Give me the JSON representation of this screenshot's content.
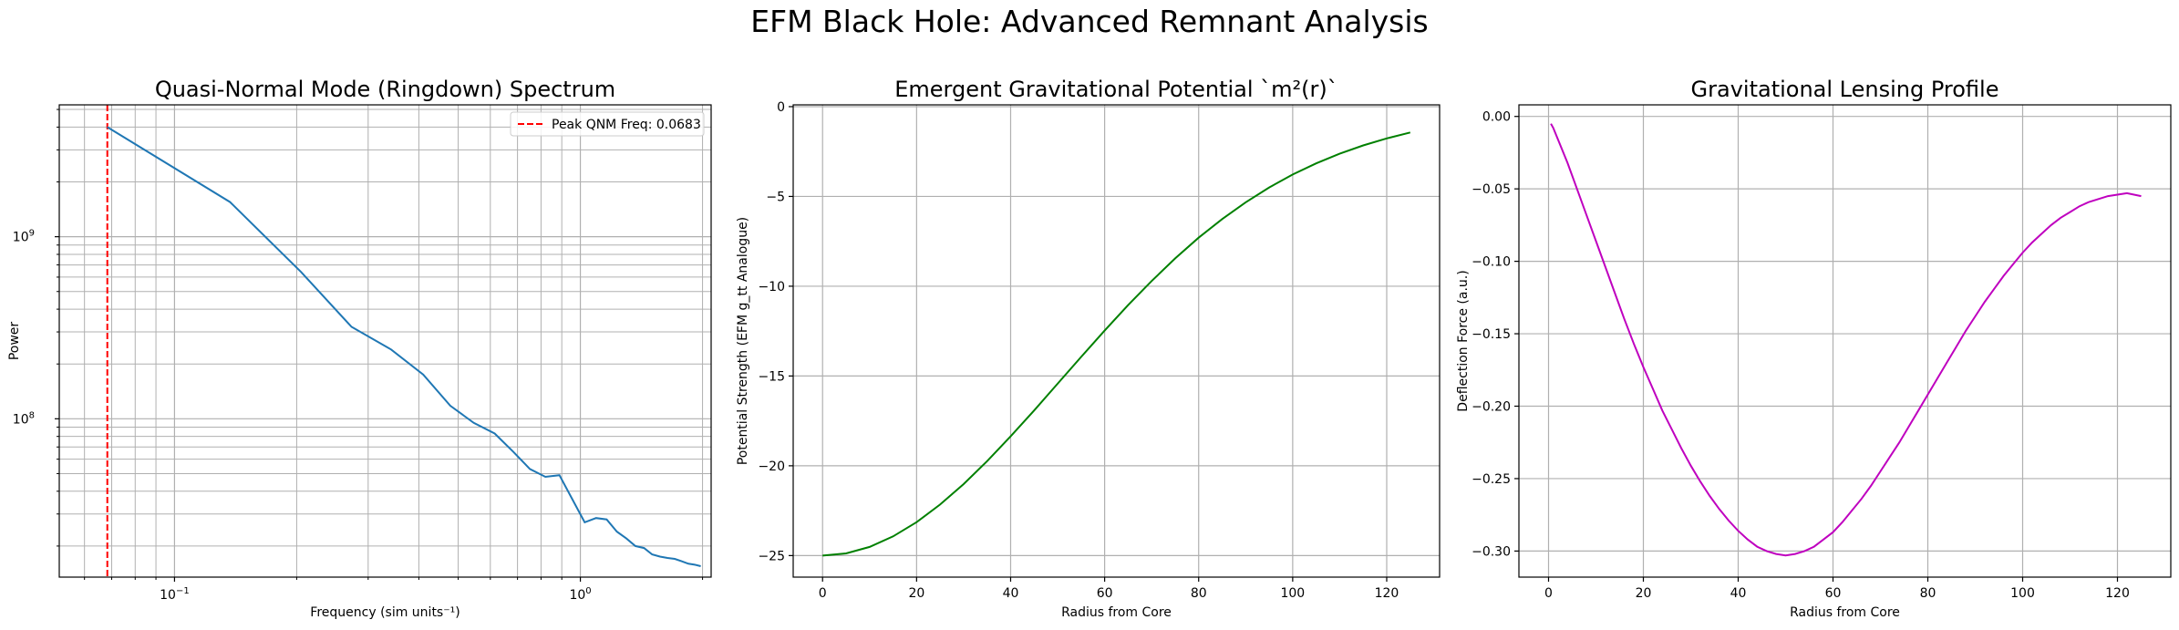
{
  "figure": {
    "title": "EFM Black Hole: Advanced Remnant Analysis"
  },
  "chart_data": [
    {
      "type": "line",
      "title": "Quasi-Normal Mode (Ringdown) Spectrum",
      "xlabel": "Frequency (sim units⁻¹)",
      "ylabel": "Power",
      "xscale": "log",
      "yscale": "log",
      "xlim": [
        0.052,
        2.1
      ],
      "ylim": [
        13500000,
        5300000000
      ],
      "grid": "both-major-minor",
      "xticks": [
        {
          "value": 0.1,
          "base": "10",
          "exp": "−1"
        },
        {
          "value": 1,
          "base": "10",
          "exp": "0"
        }
      ],
      "yticks": [
        {
          "value": 100000000,
          "base": "10",
          "exp": "8"
        },
        {
          "value": 1000000000,
          "base": "10",
          "exp": "9"
        }
      ],
      "legend": {
        "position": "top-right",
        "entries": [
          {
            "label": "Peak QNM Freq: 0.0683",
            "style": "dashed",
            "color": "#ff0000"
          }
        ]
      },
      "vline": {
        "x": 0.0683,
        "color": "#ff0000",
        "style": "dashed"
      },
      "series": [
        {
          "color": "#1f77b4",
          "x": [
            0.0683,
            0.137,
            0.205,
            0.273,
            0.342,
            0.41,
            0.478,
            0.546,
            0.615,
            0.683,
            0.751,
            0.82,
            0.888,
            0.956,
            1.025,
            1.093,
            1.161,
            1.23,
            1.298,
            1.366,
            1.435,
            1.503,
            1.571,
            1.64,
            1.708,
            1.776,
            1.845,
            1.913,
            1.98
          ],
          "values": [
            4000000000,
            1550000000,
            640000000,
            320000000,
            240000000,
            175000000,
            118000000,
            95000000,
            83000000,
            66000000,
            53000000,
            48000000,
            49000000,
            36000000,
            27000000,
            28500000,
            28000000,
            24000000,
            22000000,
            20000000,
            19500000,
            18000000,
            17500000,
            17200000,
            17000000,
            16500000,
            16000000,
            15800000,
            15500000
          ]
        }
      ]
    },
    {
      "type": "line",
      "title": "Emergent Gravitational Potential `m²(r)`",
      "xlabel": "Radius from Core",
      "ylabel": "Potential Strength (EFM g_tt Analogue)",
      "xlim": [
        -6.25,
        131.25
      ],
      "ylim": [
        -26.2,
        0.1
      ],
      "grid": "major",
      "xticks": [
        0,
        20,
        40,
        60,
        80,
        100,
        120
      ],
      "yticks": [
        0,
        -5,
        -10,
        -15,
        -20,
        -25
      ],
      "ytick_labels": [
        "0",
        "−5",
        "−10",
        "−15",
        "−20",
        "−25"
      ],
      "series": [
        {
          "color": "#008000",
          "x": [
            0,
            5,
            10,
            15,
            20,
            25,
            30,
            35,
            40,
            45,
            50,
            55,
            60,
            65,
            70,
            75,
            80,
            85,
            90,
            95,
            100,
            105,
            110,
            115,
            120,
            125
          ],
          "values": [
            -25.0,
            -24.88,
            -24.52,
            -23.93,
            -23.14,
            -22.16,
            -21.02,
            -19.74,
            -18.36,
            -16.92,
            -15.43,
            -13.94,
            -12.47,
            -11.05,
            -9.71,
            -8.45,
            -7.3,
            -6.26,
            -5.33,
            -4.5,
            -3.78,
            -3.16,
            -2.62,
            -2.16,
            -1.77,
            -1.44
          ]
        }
      ]
    },
    {
      "type": "line",
      "title": "Gravitational Lensing Profile",
      "xlabel": "Radius from Core",
      "ylabel": "Deflection Force (a.u.)",
      "xlim": [
        -6.25,
        131.25
      ],
      "ylim": [
        -0.318,
        0.008
      ],
      "grid": "major",
      "xticks": [
        0,
        20,
        40,
        60,
        80,
        100,
        120
      ],
      "yticks": [
        0.0,
        -0.05,
        -0.1,
        -0.15,
        -0.2,
        -0.25,
        -0.3
      ],
      "ytick_labels": [
        "0.00",
        "−0.05",
        "−0.10",
        "−0.15",
        "−0.20",
        "−0.25",
        "−0.30"
      ],
      "series": [
        {
          "color": "#bf00bf",
          "x": [
            0.5,
            1,
            2,
            4,
            6,
            8,
            10,
            12,
            14,
            16,
            18,
            20,
            22,
            24,
            26,
            28,
            30,
            32,
            34,
            36,
            38,
            40,
            42,
            44,
            46,
            48,
            50,
            52,
            54,
            56,
            58,
            60,
            62,
            64,
            66,
            68,
            70,
            72,
            74,
            76,
            78,
            80,
            82,
            84,
            86,
            88,
            90,
            92,
            94,
            96,
            98,
            100,
            102,
            104,
            106,
            108,
            110,
            112,
            114,
            116,
            118,
            120,
            122,
            125
          ],
          "values": [
            -0.005,
            -0.008,
            -0.016,
            -0.032,
            -0.05,
            -0.068,
            -0.086,
            -0.104,
            -0.122,
            -0.14,
            -0.157,
            -0.173,
            -0.188,
            -0.203,
            -0.216,
            -0.229,
            -0.241,
            -0.252,
            -0.262,
            -0.271,
            -0.279,
            -0.286,
            -0.292,
            -0.297,
            -0.3,
            -0.302,
            -0.303,
            -0.302,
            -0.3,
            -0.297,
            -0.292,
            -0.287,
            -0.28,
            -0.272,
            -0.264,
            -0.255,
            -0.245,
            -0.235,
            -0.225,
            -0.214,
            -0.203,
            -0.192,
            -0.181,
            -0.17,
            -0.159,
            -0.148,
            -0.138,
            -0.128,
            -0.119,
            -0.11,
            -0.102,
            -0.094,
            -0.087,
            -0.081,
            -0.075,
            -0.07,
            -0.066,
            -0.062,
            -0.059,
            -0.057,
            -0.055,
            -0.054,
            -0.053,
            -0.055
          ]
        }
      ]
    }
  ]
}
